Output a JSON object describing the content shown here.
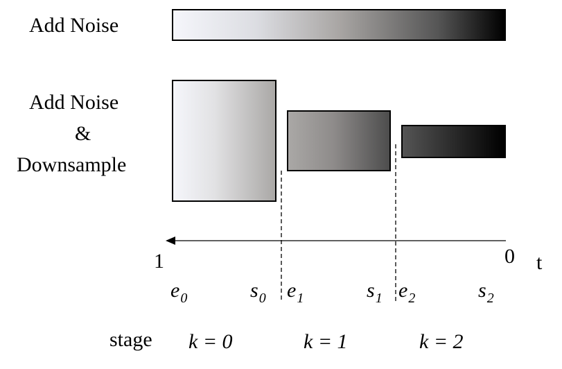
{
  "rows": {
    "row1_label": "Add Noise",
    "row2_label_line1": "Add Noise",
    "row2_label_line2": "&",
    "row2_label_line3": "Downsample"
  },
  "axis": {
    "left_value": "1",
    "right_value": "0",
    "name": "t"
  },
  "markers": [
    {
      "letter": "e",
      "sub": "0"
    },
    {
      "letter": "s",
      "sub": "0"
    },
    {
      "letter": "e",
      "sub": "1"
    },
    {
      "letter": "s",
      "sub": "1"
    },
    {
      "letter": "e",
      "sub": "2"
    },
    {
      "letter": "s",
      "sub": "2"
    }
  ],
  "stage": {
    "label": "stage",
    "stages": [
      "k = 0",
      "k = 1",
      "k = 2"
    ]
  },
  "colors": {
    "noise_start": "#f5f6fb",
    "noise_mid": "#a9a6a4",
    "noise_end": "#000000"
  }
}
